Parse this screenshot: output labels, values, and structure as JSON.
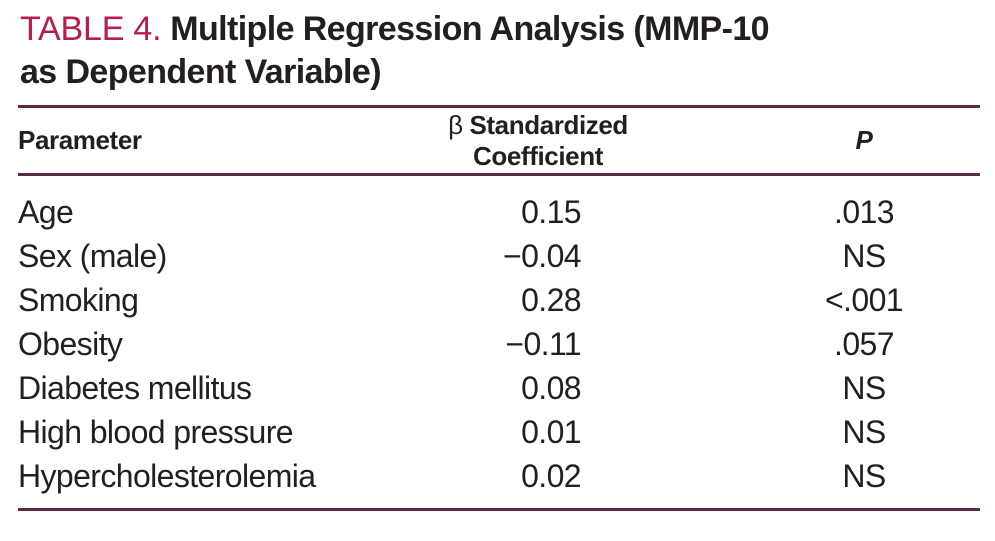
{
  "title": {
    "label": "TABLE 4.",
    "text_line1": "Multiple Regression Analysis (MMP-10",
    "text_line2": "as Dependent Variable)"
  },
  "table": {
    "columns": [
      {
        "key": "parameter",
        "label": "Parameter"
      },
      {
        "key": "coefficient",
        "symbol": "β",
        "label": " Standardized Coefficient"
      },
      {
        "key": "p",
        "label": "P"
      }
    ],
    "rows": [
      {
        "parameter": "Age",
        "coefficient": "0.15",
        "p": ".013"
      },
      {
        "parameter": "Sex (male)",
        "coefficient": "−0.04",
        "p": "NS"
      },
      {
        "parameter": "Smoking",
        "coefficient": "0.28",
        "p": "<.001"
      },
      {
        "parameter": "Obesity",
        "coefficient": "−0.11",
        "p": ".057"
      },
      {
        "parameter": "Diabetes mellitus",
        "coefficient": "0.08",
        "p": "NS"
      },
      {
        "parameter": "High blood pressure",
        "coefficient": "0.01",
        "p": "NS"
      },
      {
        "parameter": "Hypercholesterolemia",
        "coefficient": "0.02",
        "p": "NS"
      }
    ]
  },
  "colors": {
    "accent": "#b41e49",
    "rule": "#5c2a44",
    "text": "#231f20"
  }
}
